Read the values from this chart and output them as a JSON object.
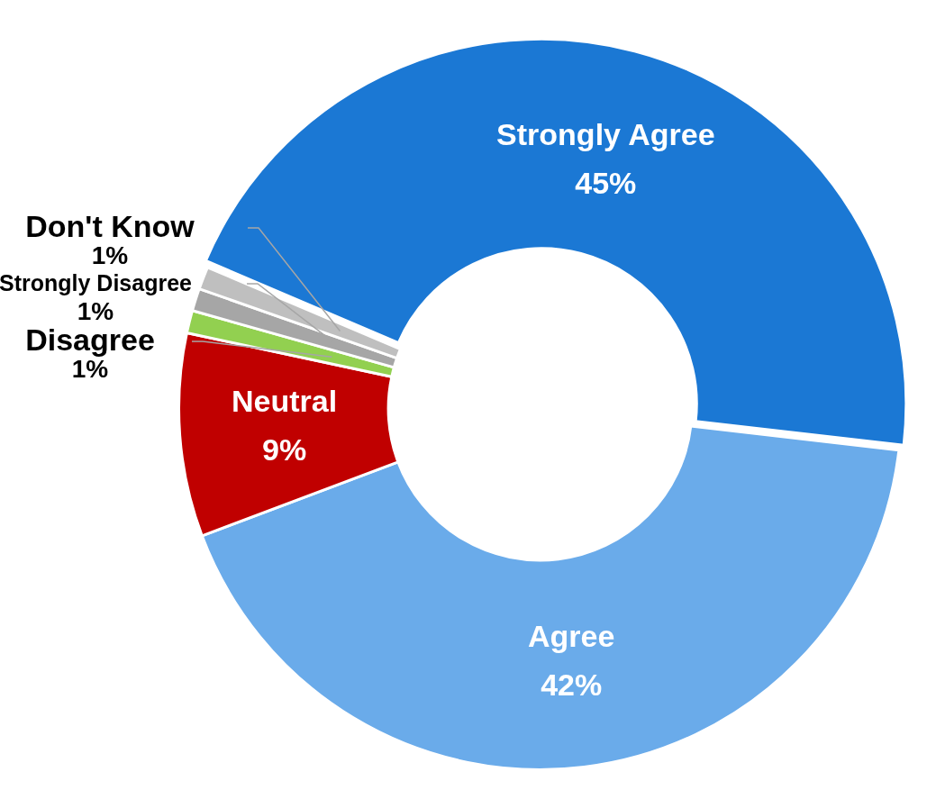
{
  "chart_data": {
    "type": "donut",
    "categories": [
      "Strongly Agree",
      "Agree",
      "Neutral",
      "Disagree",
      "Strongly Disagree",
      "Don't Know"
    ],
    "values": [
      45,
      42,
      9,
      1,
      1,
      1
    ],
    "colors": [
      "#1b78d4",
      "#6aabea",
      "#c00000",
      "#92d050",
      "#a6a6a6",
      "#bfbfbf"
    ],
    "value_labels": [
      "45%",
      "42%",
      "9%",
      "1%",
      "1%",
      "1%"
    ],
    "legend": false
  }
}
